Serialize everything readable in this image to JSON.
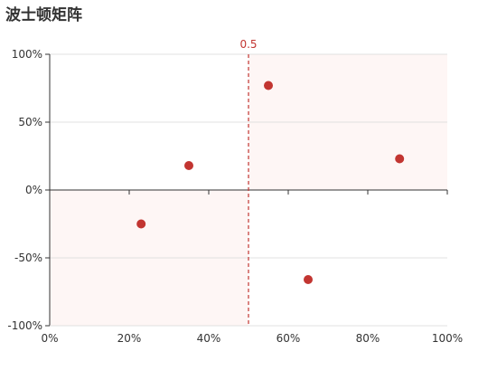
{
  "page": {
    "title": "波士顿矩阵"
  },
  "chart_data": {
    "type": "scatter",
    "title": "波士顿矩阵",
    "xlabel": "",
    "ylabel": "",
    "xlim": [
      0,
      1
    ],
    "ylim": [
      -1,
      1
    ],
    "x_ticks": [
      "0%",
      "20%",
      "40%",
      "60%",
      "80%",
      "100%"
    ],
    "x_tick_values": [
      0,
      0.2,
      0.4,
      0.6,
      0.8,
      1.0
    ],
    "y_ticks": [
      "-100%",
      "-50%",
      "0%",
      "50%",
      "100%"
    ],
    "y_tick_values": [
      -1,
      -0.5,
      0,
      0.5,
      1
    ],
    "mark_line": {
      "value": 0.5,
      "label": "0.5"
    },
    "shaded_quadrants": [
      {
        "x": [
          0.5,
          1.0
        ],
        "y": [
          0,
          1
        ]
      },
      {
        "x": [
          0,
          0.5
        ],
        "y": [
          -1,
          0
        ]
      }
    ],
    "series": [
      {
        "points": [
          {
            "x": 0.23,
            "y": -0.25
          },
          {
            "x": 0.35,
            "y": 0.18
          },
          {
            "x": 0.55,
            "y": 0.77
          },
          {
            "x": 0.65,
            "y": -0.66
          },
          {
            "x": 0.88,
            "y": 0.23
          }
        ]
      }
    ],
    "grid": true,
    "colors": {
      "point": "#c23531",
      "mark_line": "#c23531",
      "shade": "#fef6f5",
      "grid": "#e0e0e0",
      "axis": "#333333"
    }
  }
}
